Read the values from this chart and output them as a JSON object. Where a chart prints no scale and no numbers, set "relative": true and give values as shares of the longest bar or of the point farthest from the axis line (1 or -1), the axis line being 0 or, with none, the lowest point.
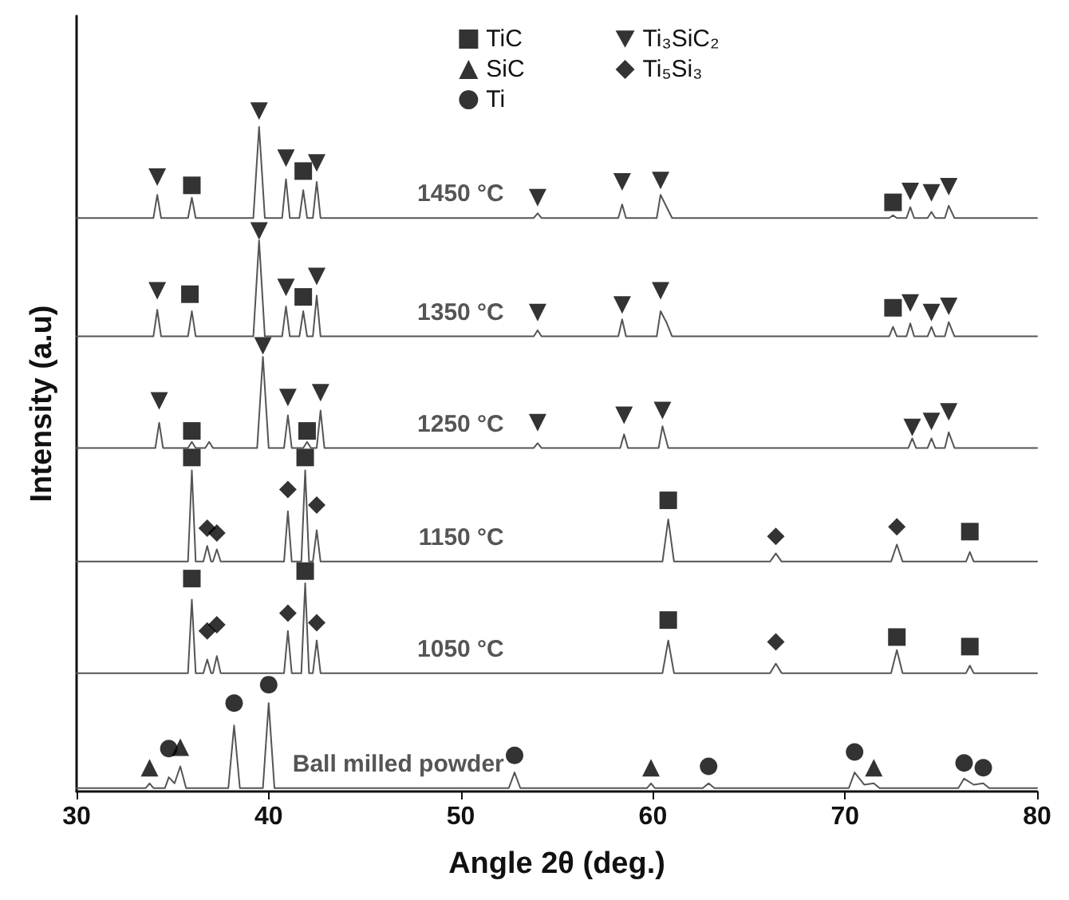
{
  "chart_data": {
    "type": "line",
    "relative": true,
    "xlabel": "Angle 2θ (deg.)",
    "ylabel": "Intensity (a.u)",
    "xlim": [
      30,
      80
    ],
    "xticks": [
      30,
      40,
      50,
      60,
      70,
      80
    ],
    "grid": false,
    "legend": "top",
    "marker": "none",
    "line_style": "solid",
    "series": [
      {
        "name": "1450 °C",
        "color": "#555555",
        "x": [
          30,
          34.0,
          34.2,
          34.4,
          35.8,
          36.0,
          36.2,
          39.2,
          39.5,
          39.8,
          40.7,
          40.9,
          41.1,
          41.6,
          41.8,
          42.0,
          42.3,
          42.5,
          42.7,
          53.8,
          54.0,
          54.2,
          58.2,
          58.4,
          58.6,
          60.2,
          60.4,
          60.7,
          61.0,
          72.3,
          72.5,
          72.7,
          73.2,
          73.4,
          73.6,
          74.3,
          74.5,
          74.7,
          75.2,
          75.4,
          75.7,
          80
        ],
        "values": [
          0.843,
          0.843,
          0.877,
          0.843,
          0.843,
          0.873,
          0.843,
          0.843,
          0.977,
          0.843,
          0.843,
          0.9,
          0.843,
          0.843,
          0.884,
          0.843,
          0.843,
          0.896,
          0.843,
          0.843,
          0.85,
          0.843,
          0.843,
          0.863,
          0.843,
          0.843,
          0.877,
          0.86,
          0.843,
          0.843,
          0.847,
          0.843,
          0.843,
          0.859,
          0.843,
          0.843,
          0.852,
          0.843,
          0.843,
          0.861,
          0.843,
          0.843
        ]
      },
      {
        "name": "1350 °C",
        "color": "#555555",
        "x": [
          30,
          34.0,
          34.2,
          34.4,
          35.8,
          36.0,
          36.2,
          39.2,
          39.5,
          39.8,
          40.7,
          40.9,
          41.1,
          41.6,
          41.8,
          42.0,
          42.3,
          42.5,
          42.7,
          53.8,
          54.0,
          54.2,
          58.2,
          58.4,
          58.6,
          60.2,
          60.4,
          60.7,
          61.0,
          72.3,
          72.5,
          72.7,
          73.2,
          73.4,
          73.6,
          74.3,
          74.5,
          74.7,
          75.2,
          75.4,
          75.7,
          80
        ],
        "values": [
          0.669,
          0.669,
          0.708,
          0.669,
          0.669,
          0.706,
          0.669,
          0.669,
          0.81,
          0.669,
          0.669,
          0.713,
          0.669,
          0.669,
          0.706,
          0.669,
          0.669,
          0.729,
          0.669,
          0.669,
          0.678,
          0.669,
          0.669,
          0.694,
          0.669,
          0.669,
          0.706,
          0.69,
          0.669,
          0.669,
          0.683,
          0.669,
          0.669,
          0.688,
          0.669,
          0.669,
          0.683,
          0.669,
          0.669,
          0.69,
          0.669,
          0.669
        ]
      },
      {
        "name": "1250 °C",
        "color": "#555555",
        "x": [
          30,
          34.1,
          34.3,
          34.5,
          35.8,
          36.0,
          36.2,
          36.7,
          36.9,
          37.1,
          39.4,
          39.7,
          40.0,
          40.8,
          41.0,
          41.2,
          41.8,
          42.0,
          42.2,
          42.5,
          42.7,
          42.9,
          53.8,
          54.0,
          54.2,
          58.3,
          58.5,
          58.7,
          60.3,
          60.5,
          60.8,
          73.3,
          73.5,
          73.7,
          74.3,
          74.5,
          74.7,
          75.2,
          75.4,
          75.7,
          80
        ],
        "values": [
          0.505,
          0.505,
          0.542,
          0.505,
          0.505,
          0.514,
          0.505,
          0.505,
          0.514,
          0.505,
          0.505,
          0.639,
          0.505,
          0.505,
          0.553,
          0.505,
          0.505,
          0.514,
          0.505,
          0.505,
          0.56,
          0.505,
          0.505,
          0.512,
          0.505,
          0.505,
          0.525,
          0.505,
          0.505,
          0.537,
          0.505,
          0.505,
          0.519,
          0.505,
          0.505,
          0.519,
          0.505,
          0.505,
          0.528,
          0.505,
          0.505
        ]
      },
      {
        "name": "1150 °C",
        "color": "#555555",
        "x": [
          30,
          35.8,
          36.0,
          36.2,
          36.6,
          36.8,
          37.0,
          37.1,
          37.3,
          37.5,
          40.8,
          41.0,
          41.2,
          41.7,
          41.9,
          42.1,
          42.3,
          42.5,
          42.7,
          60.5,
          60.8,
          61.1,
          66.1,
          66.4,
          66.7,
          72.4,
          72.7,
          73.0,
          76.3,
          76.5,
          76.7,
          80
        ],
        "values": [
          0.338,
          0.338,
          0.472,
          0.338,
          0.338,
          0.361,
          0.338,
          0.338,
          0.356,
          0.338,
          0.338,
          0.412,
          0.338,
          0.338,
          0.472,
          0.338,
          0.338,
          0.384,
          0.338,
          0.338,
          0.4,
          0.338,
          0.338,
          0.35,
          0.338,
          0.338,
          0.363,
          0.338,
          0.338,
          0.352,
          0.338,
          0.338
        ]
      },
      {
        "name": "1050 °C",
        "color": "#555555",
        "x": [
          30,
          35.8,
          36.0,
          36.2,
          36.6,
          36.8,
          37.0,
          37.1,
          37.3,
          37.5,
          40.8,
          41.0,
          41.2,
          41.7,
          41.9,
          42.1,
          42.3,
          42.5,
          42.7,
          60.5,
          60.8,
          61.1,
          66.1,
          66.4,
          66.7,
          72.4,
          72.7,
          73.0,
          76.3,
          76.5,
          76.7,
          80
        ],
        "values": [
          0.174,
          0.174,
          0.282,
          0.174,
          0.174,
          0.194,
          0.174,
          0.174,
          0.199,
          0.174,
          0.174,
          0.236,
          0.174,
          0.174,
          0.306,
          0.174,
          0.174,
          0.222,
          0.174,
          0.174,
          0.222,
          0.174,
          0.174,
          0.188,
          0.174,
          0.174,
          0.208,
          0.174,
          0.174,
          0.185,
          0.174,
          0.174
        ]
      },
      {
        "name": "Ball milled powder",
        "color": "#555555",
        "x": [
          30,
          33.6,
          33.8,
          34.0,
          34.6,
          34.8,
          35.1,
          35.4,
          35.7,
          37.9,
          38.2,
          38.5,
          39.7,
          40.0,
          40.3,
          52.5,
          52.8,
          53.1,
          59.7,
          59.9,
          60.1,
          62.6,
          62.9,
          63.2,
          70.2,
          70.5,
          71.0,
          71.5,
          71.8,
          75.9,
          76.2,
          76.7,
          77.2,
          77.5,
          80
        ],
        "values": [
          0.005,
          0.005,
          0.012,
          0.005,
          0.005,
          0.021,
          0.012,
          0.037,
          0.005,
          0.005,
          0.097,
          0.005,
          0.005,
          0.13,
          0.005,
          0.005,
          0.028,
          0.005,
          0.005,
          0.012,
          0.005,
          0.005,
          0.012,
          0.005,
          0.005,
          0.028,
          0.01,
          0.012,
          0.005,
          0.005,
          0.019,
          0.01,
          0.012,
          0.005,
          0.005
        ]
      },
      {
        "name": "TiC",
        "type": "scatter",
        "marker": "square",
        "color": "#000000",
        "x": [
          36.0,
          41.8,
          72.5,
          35.9,
          41.8,
          72.5,
          36.0,
          42.0,
          36.0,
          41.9,
          60.8,
          76.5,
          36.0,
          41.9,
          60.8,
          72.7,
          76.5
        ],
        "values": [
          0.891,
          0.912,
          0.866,
          0.731,
          0.727,
          0.711,
          0.53,
          0.53,
          0.491,
          0.491,
          0.428,
          0.382,
          0.313,
          0.324,
          0.252,
          0.227,
          0.213
        ]
      },
      {
        "name": "SiC",
        "type": "scatter",
        "marker": "triangle",
        "color": "#000000",
        "x": [
          33.8,
          35.4,
          59.9,
          71.5
        ],
        "values": [
          0.035,
          0.065,
          0.035,
          0.035
        ]
      },
      {
        "name": "Ti",
        "type": "scatter",
        "marker": "circle",
        "color": "#000000",
        "x": [
          34.8,
          38.2,
          40.0,
          52.8,
          62.9,
          70.5,
          76.2,
          77.2
        ],
        "values": [
          0.063,
          0.13,
          0.157,
          0.053,
          0.037,
          0.058,
          0.042,
          0.035
        ]
      },
      {
        "name": "Ti₃SiC₂",
        "type": "scatter",
        "marker": "triangle-down",
        "color": "#000000",
        "x": [
          34.2,
          39.5,
          40.9,
          42.5,
          54.0,
          58.4,
          60.4,
          73.4,
          74.5,
          75.4,
          34.2,
          39.5,
          40.9,
          42.5,
          54.0,
          58.4,
          60.4,
          73.4,
          74.5,
          75.4,
          34.3,
          39.7,
          41.0,
          42.7,
          54.0,
          58.5,
          60.5,
          73.5,
          74.5,
          75.4
        ],
        "values": [
          0.903,
          1.0,
          0.931,
          0.924,
          0.873,
          0.896,
          0.898,
          0.882,
          0.88,
          0.889,
          0.736,
          0.824,
          0.741,
          0.757,
          0.704,
          0.715,
          0.736,
          0.718,
          0.704,
          0.713,
          0.574,
          0.655,
          0.579,
          0.586,
          0.542,
          0.553,
          0.56,
          0.535,
          0.544,
          0.558
        ]
      },
      {
        "name": "Ti₅Si₃",
        "type": "scatter",
        "marker": "diamond",
        "color": "#000000",
        "x": [
          36.8,
          37.3,
          41.0,
          42.5,
          66.4,
          72.7,
          36.8,
          37.3,
          41.0,
          42.5,
          66.4
        ],
        "values": [
          0.387,
          0.38,
          0.444,
          0.421,
          0.375,
          0.389,
          0.236,
          0.245,
          0.262,
          0.248,
          0.22
        ]
      }
    ]
  }
}
